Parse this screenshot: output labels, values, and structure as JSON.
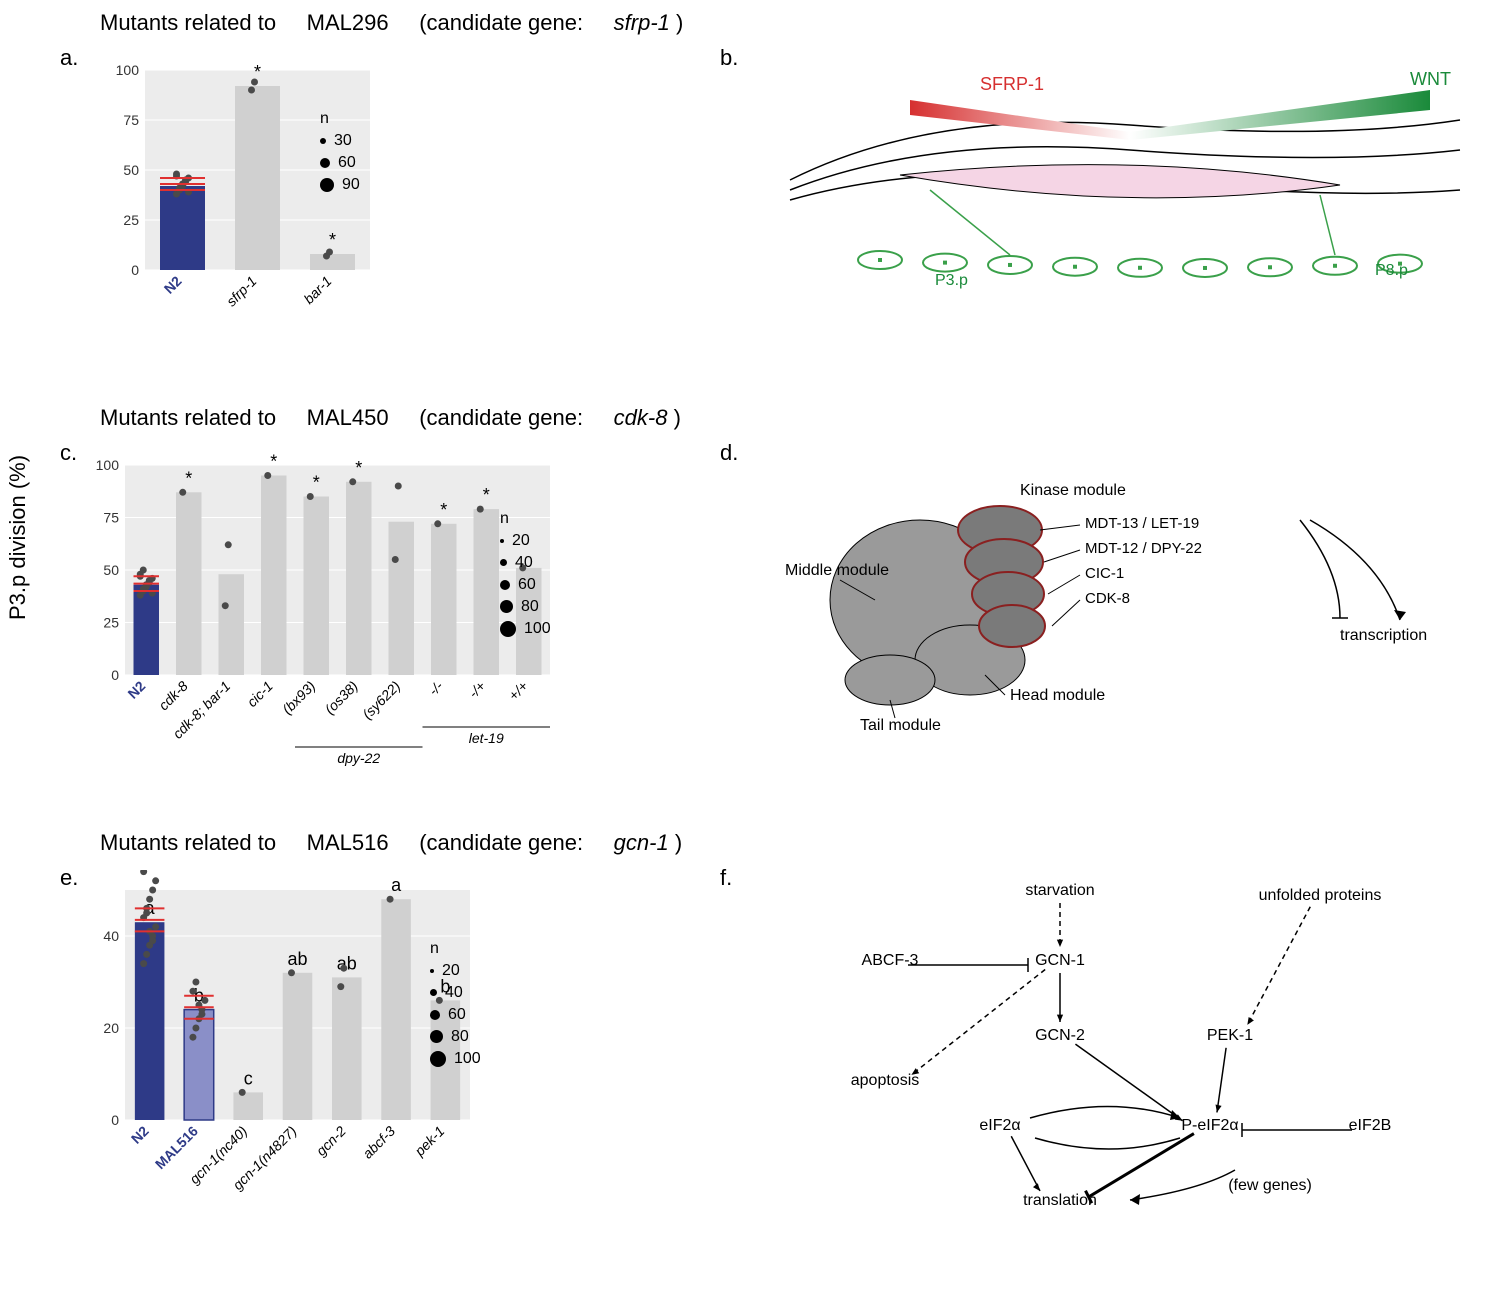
{
  "yaxis_label": "P3.p division (%)",
  "sections": {
    "a": {
      "title_prefix": "Mutants related to",
      "ident": "MAL296",
      "title_mid": "(candidate gene:",
      "gene": "sfrp-1",
      "title_suffix": ")",
      "panel_left": "a.",
      "panel_right": "b."
    },
    "c": {
      "title_prefix": "Mutants related to",
      "ident": "MAL450",
      "title_mid": "(candidate gene:",
      "gene": "cdk-8",
      "title_suffix": ")",
      "panel_left": "c.",
      "panel_right": "d."
    },
    "e": {
      "title_prefix": "Mutants related to",
      "ident": "MAL516",
      "title_mid": "(candidate gene:",
      "gene": "gcn-1",
      "title_suffix": ")",
      "panel_left": "e.",
      "panel_right": "f."
    }
  },
  "chart_a": {
    "type": "bar",
    "bg": "#ececec",
    "bar_width": 0.6,
    "ylim": [
      0,
      100
    ],
    "yticks": [
      0,
      25,
      50,
      75,
      100
    ],
    "categories": [
      "N2",
      "sfrp-1",
      "bar-1"
    ],
    "values": [
      42,
      92,
      8
    ],
    "colors": [
      "#2e3a87",
      "#d0d0d0",
      "#d0d0d0"
    ],
    "sig": [
      "",
      "*",
      "*"
    ],
    "n2_scatter": {
      "y": [
        38,
        40,
        42,
        44,
        46,
        48,
        41,
        43,
        45,
        39,
        47
      ],
      "err": [
        40,
        46
      ]
    },
    "scatter": {
      "1": [
        90,
        94
      ],
      "2": [
        7,
        9
      ]
    },
    "legend_n": {
      "title": "n",
      "items": [
        {
          "label": "30",
          "r": 3
        },
        {
          "label": "60",
          "r": 5
        },
        {
          "label": "90",
          "r": 7
        }
      ]
    }
  },
  "chart_c": {
    "type": "bar",
    "bg": "#ececec",
    "bar_width": 0.6,
    "ylim": [
      0,
      100
    ],
    "yticks": [
      0,
      25,
      50,
      75,
      100
    ],
    "categories": [
      "N2",
      "cdk-8",
      "cdk-8; bar-1",
      "cic-1",
      "(bx93)",
      "(os38)",
      "(sy622)",
      "-/-",
      "-/+",
      "+/+"
    ],
    "values": [
      43,
      87,
      48,
      95,
      85,
      92,
      73,
      72,
      79,
      51
    ],
    "colors": [
      "#2e3a87",
      "#d0d0d0",
      "#d0d0d0",
      "#d0d0d0",
      "#d0d0d0",
      "#d0d0d0",
      "#d0d0d0",
      "#d0d0d0",
      "#d0d0d0",
      "#d0d0d0"
    ],
    "sig": [
      "",
      "*",
      "",
      "*",
      "*",
      "*",
      "",
      "*",
      "*",
      ""
    ],
    "n2_scatter": {
      "y": [
        38,
        40,
        42,
        44,
        46,
        48,
        41,
        43,
        45,
        39,
        47,
        50
      ],
      "err": [
        40,
        47
      ]
    },
    "scatter": {
      "1": [
        87
      ],
      "2": [
        33,
        62
      ],
      "3": [
        95
      ],
      "4": [
        85
      ],
      "5": [
        92
      ],
      "6": [
        55,
        90
      ],
      "7": [
        72
      ],
      "8": [
        79
      ],
      "9": [
        51
      ]
    },
    "group_labels": {
      "dpy22": "dpy-22",
      "let19": "let-19"
    },
    "legend_n": {
      "title": "n",
      "items": [
        {
          "label": "20",
          "r": 2
        },
        {
          "label": "40",
          "r": 3.5
        },
        {
          "label": "60",
          "r": 5
        },
        {
          "label": "80",
          "r": 6.5
        },
        {
          "label": "100",
          "r": 8
        }
      ]
    }
  },
  "chart_e": {
    "type": "bar",
    "bg": "#ececec",
    "bar_width": 0.6,
    "ylim": [
      0,
      50
    ],
    "yticks": [
      0,
      20,
      40
    ],
    "categories": [
      "N2",
      "MAL516",
      "gcn-1(nc40)",
      "gcn-1(n4827)",
      "gcn-2",
      "abcf-3",
      "pek-1"
    ],
    "values": [
      43,
      24,
      6,
      32,
      31,
      48,
      26
    ],
    "colors": [
      "#2e3a87",
      "#8a8fc8",
      "#d0d0d0",
      "#d0d0d0",
      "#d0d0d0",
      "#d0d0d0",
      "#d0d0d0"
    ],
    "sig": [
      "a",
      "b",
      "c",
      "ab",
      "ab",
      "a",
      "b"
    ],
    "n2_scatter": {
      "y": [
        34,
        36,
        38,
        40,
        42,
        44,
        46,
        48,
        50,
        52,
        54,
        45,
        41,
        39
      ],
      "err": [
        41,
        46
      ]
    },
    "mal_scatter": {
      "y": [
        18,
        20,
        22,
        24,
        26,
        28,
        30,
        25,
        23
      ],
      "err": [
        22,
        27
      ]
    },
    "scatter": {
      "2": [
        6
      ],
      "3": [
        32
      ],
      "4": [
        29,
        33
      ],
      "5": [
        48
      ],
      "6": [
        26
      ]
    },
    "legend_n": {
      "title": "n",
      "items": [
        {
          "label": "20",
          "r": 2
        },
        {
          "label": "40",
          "r": 3.5
        },
        {
          "label": "60",
          "r": 5
        },
        {
          "label": "80",
          "r": 6.5
        },
        {
          "label": "100",
          "r": 8
        }
      ]
    }
  },
  "diagram_b": {
    "sfrp": "SFRP-1",
    "wnt": "WNT",
    "p3p": "P3.p",
    "p8p": "P8.p",
    "sfrp_color": "#d63030",
    "wnt_color": "#1a8a3a",
    "cell_color": "#3aa04a",
    "gonad_color": "#f5d5e5"
  },
  "diagram_d": {
    "kinase": "Kinase module",
    "middle": "Middle module",
    "head": "Head module",
    "tail": "Tail module",
    "k1": "MDT-13 / LET-19",
    "k2": "MDT-12 / DPY-22",
    "k3": "CIC-1",
    "k4": "CDK-8",
    "trans": "transcription",
    "body_color": "#9a9a9a",
    "kinase_color": "#7a7a7a",
    "kinase_stroke": "#8a2020"
  },
  "diagram_f": {
    "starvation": "starvation",
    "unfolded": "unfolded proteins",
    "abcf3": "ABCF-3",
    "gcn1": "GCN-1",
    "gcn2": "GCN-2",
    "pek1": "PEK-1",
    "apoptosis": "apoptosis",
    "eif2a": "eIF2α",
    "peif2a": "P-eIF2α",
    "eif2b": "eIF2B",
    "translation": "translation",
    "few": "(few genes)"
  }
}
